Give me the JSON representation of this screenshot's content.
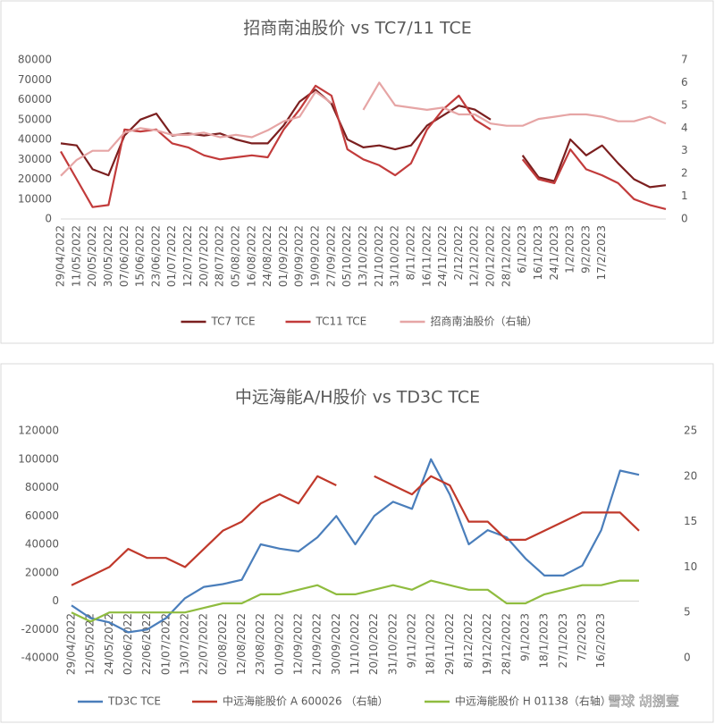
{
  "chart_data": [
    {
      "type": "line",
      "title": "招商南油股价 vs TC7/11 TCE",
      "categories": [
        "29/04/2022",
        "11/05/2022",
        "20/05/2022",
        "30/05/2022",
        "07/06/2022",
        "15/06/2022",
        "23/06/2022",
        "01/07/2022",
        "12/07/2022",
        "20/07/2022",
        "28/07/2022",
        "05/08/2022",
        "16/08/2022",
        "24/08/2022",
        "01/09/2022",
        "09/09/2022",
        "19/09/2022",
        "27/09/2022",
        "05/10/2022",
        "13/10/2022",
        "21/10/2022",
        "31/10/2022",
        "8/11/2022",
        "16/11/2022",
        "24/11/2022",
        "2/12/2022",
        "12/12/2022",
        "20/12/2022",
        "28/12/2022",
        "6/1/2023",
        "16/1/2023",
        "24/1/2023",
        "1/2/2023",
        "9/2/2023",
        "17/2/2023",
        null,
        null,
        null,
        null
      ],
      "series": [
        {
          "name": "TC7 TCE",
          "color": "#7b1f1f",
          "axis": "y",
          "values": [
            38000,
            37000,
            25000,
            22000,
            42000,
            50000,
            53000,
            42000,
            43000,
            42000,
            43000,
            40000,
            38000,
            38000,
            47000,
            59000,
            65000,
            58000,
            40000,
            36000,
            37000,
            35000,
            37000,
            47000,
            52000,
            57000,
            55000,
            50000,
            null,
            32000,
            21000,
            19000,
            40000,
            32000,
            37000,
            28000,
            20000,
            16000,
            17000
          ]
        },
        {
          "name": "TC11 TCE",
          "color": "#c23b3b",
          "axis": "y",
          "values": [
            34000,
            20000,
            6000,
            7000,
            45000,
            44000,
            45000,
            38000,
            36000,
            32000,
            30000,
            31000,
            32000,
            31000,
            45000,
            55000,
            67000,
            62000,
            35000,
            30000,
            27000,
            22000,
            28000,
            45000,
            55000,
            62000,
            50000,
            45000,
            null,
            30000,
            20000,
            18000,
            35000,
            25000,
            22000,
            18000,
            10000,
            7000,
            5000
          ]
        },
        {
          "name": "招商南油股价（右轴）",
          "color": "#e6a5a5",
          "axis": "y2",
          "values": [
            1.9,
            2.6,
            3.0,
            3.0,
            3.8,
            4.0,
            3.9,
            3.7,
            3.7,
            3.8,
            3.6,
            3.7,
            3.6,
            3.9,
            4.3,
            4.5,
            5.6,
            5.1,
            null,
            4.8,
            6.0,
            5.0,
            4.9,
            4.8,
            4.9,
            4.6,
            4.6,
            4.2,
            4.1,
            4.1,
            4.4,
            4.5,
            4.6,
            4.6,
            4.5,
            4.3,
            4.3,
            4.5,
            4.2
          ]
        }
      ],
      "ylim": [
        0,
        80000
      ],
      "yticks": [
        0,
        10000,
        20000,
        30000,
        40000,
        50000,
        60000,
        70000,
        80000
      ],
      "y2lim": [
        0,
        7
      ],
      "y2ticks": [
        0,
        1,
        2,
        3,
        4,
        5,
        6,
        7
      ],
      "grid": false,
      "legend": "bottom"
    },
    {
      "type": "line",
      "title": "中远海能A/H股价 vs TD3C TCE",
      "categories": [
        "29/04/2022",
        "12/05/2022",
        "24/05/2022",
        "02/06/2022",
        "22/06/2022",
        "01/07/2022",
        "13/07/2022",
        "22/07/2022",
        "02/08/2022",
        "12/08/2022",
        "23/08/2022",
        "01/09/2022",
        "12/09/2022",
        "21/09/2022",
        "30/09/2022",
        "11/10/2022",
        "20/10/2022",
        "31/10/2022",
        "9/11/2022",
        "18/11/2022",
        "29/11/2022",
        "8/12/2022",
        "19/12/2022",
        "28/12/2022",
        "9/1/2023",
        "18/1/2023",
        "27/1/2023",
        "7/2/2023",
        "16/2/2023",
        null,
        null
      ],
      "series": [
        {
          "name": "TD3C TCE",
          "color": "#4a7ebb",
          "axis": "y",
          "values": [
            -3000,
            -12000,
            -15000,
            -22000,
            -20000,
            -12000,
            2000,
            10000,
            12000,
            15000,
            40000,
            37000,
            35000,
            45000,
            60000,
            40000,
            60000,
            70000,
            65000,
            100000,
            75000,
            40000,
            50000,
            45000,
            30000,
            18000,
            18000,
            25000,
            50000,
            92000,
            89000
          ]
        },
        {
          "name": "中远海能股价 A 600026 （右轴）",
          "color": "#c0392b",
          "axis": "y2",
          "values": [
            8,
            9,
            10,
            12,
            11,
            11,
            10,
            12,
            14,
            15,
            17,
            18,
            17,
            20,
            19,
            null,
            20,
            19,
            18,
            20,
            19,
            15,
            15,
            13,
            13,
            14,
            15,
            16,
            16,
            16,
            14
          ]
        },
        {
          "name": "中远海能股价 H 01138（右轴）",
          "color": "#8fbc3f",
          "axis": "y2",
          "values": [
            5,
            4,
            5,
            5,
            5,
            5,
            5,
            5.5,
            6,
            6,
            7,
            7,
            7.5,
            8,
            7,
            7,
            7.5,
            8,
            7.5,
            8.5,
            8,
            7.5,
            7.5,
            6,
            6,
            7,
            7.5,
            8,
            8,
            8.5,
            8.5
          ]
        }
      ],
      "ylim": [
        -40000,
        120000
      ],
      "yticks": [
        -40000,
        -20000,
        0,
        20000,
        40000,
        60000,
        80000,
        100000,
        120000
      ],
      "y2lim": [
        0,
        25
      ],
      "y2ticks": [
        0,
        5,
        10,
        15,
        20,
        25
      ],
      "grid": false,
      "legend": "bottom"
    }
  ],
  "watermark": "雪球 胡捌壹"
}
